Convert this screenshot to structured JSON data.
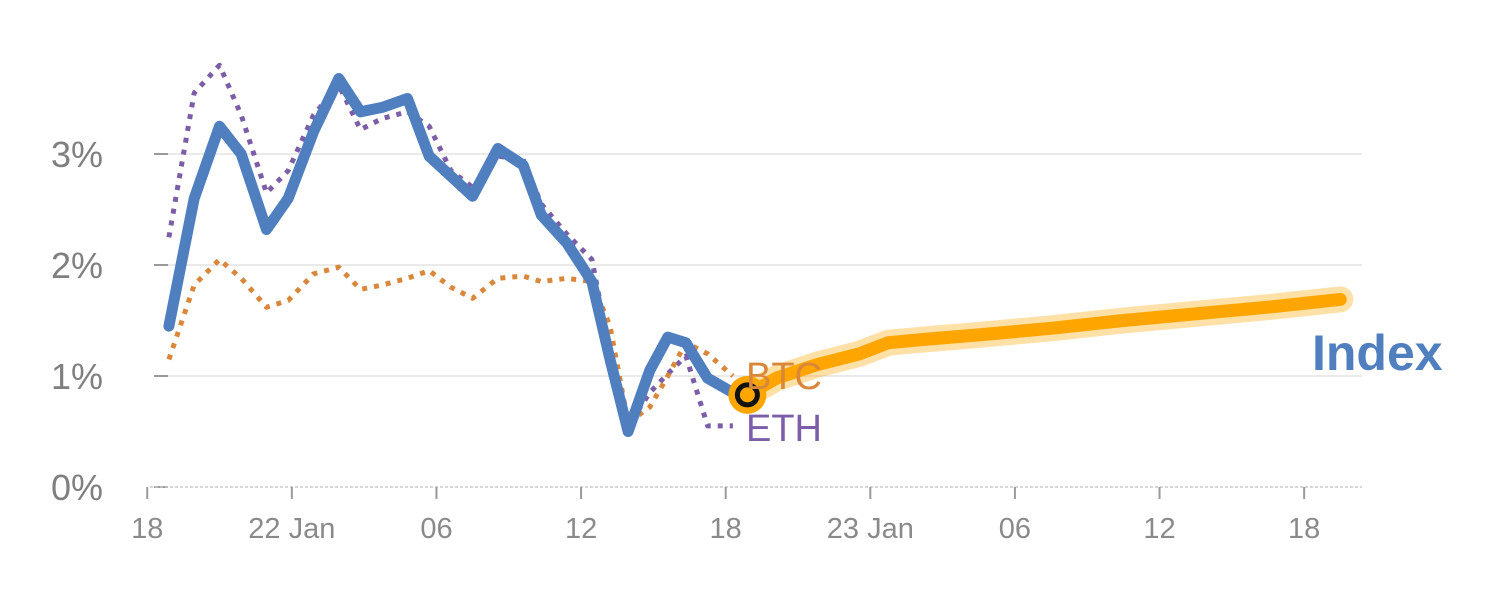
{
  "chart_data": {
    "type": "line",
    "y_unit": "%",
    "ylim": [
      0,
      4
    ],
    "y_ticks": [
      {
        "value": 0,
        "label": "0%"
      },
      {
        "value": 1,
        "label": "1%"
      },
      {
        "value": 2,
        "label": "2%"
      },
      {
        "value": 3,
        "label": "3%"
      }
    ],
    "x_ticks": [
      {
        "x": 0,
        "label": "18"
      },
      {
        "x": 4,
        "label": "22 Jan"
      },
      {
        "x": 8,
        "label": "06"
      },
      {
        "x": 12,
        "label": "12"
      },
      {
        "x": 16,
        "label": "18"
      },
      {
        "x": 20,
        "label": "23 Jan"
      },
      {
        "x": 24,
        "label": "06"
      },
      {
        "x": 28,
        "label": "12"
      },
      {
        "x": 32,
        "label": "18"
      }
    ],
    "xlim": [
      -0.2,
      33.6
    ],
    "grid": true,
    "series": [
      {
        "name": "Index",
        "style": "solid",
        "color": "#4f7fbf",
        "x": [
          0.6,
          1.3,
          2.0,
          2.6,
          3.3,
          3.9,
          4.6,
          5.3,
          5.9,
          6.5,
          7.2,
          7.8,
          8.4,
          9.0,
          9.7,
          10.4,
          10.9,
          11.6,
          12.3,
          12.8,
          13.3,
          13.9,
          14.4,
          14.9,
          15.5,
          16.2,
          16.6
        ],
        "values": [
          1.45,
          2.6,
          3.25,
          3.0,
          2.32,
          2.6,
          3.2,
          3.68,
          3.38,
          3.42,
          3.5,
          2.98,
          2.8,
          2.62,
          3.05,
          2.9,
          2.45,
          2.2,
          1.85,
          1.15,
          0.5,
          1.05,
          1.35,
          1.3,
          0.98,
          0.85,
          0.83
        ]
      },
      {
        "name": "ETH",
        "style": "dotted",
        "color": "#7b5ea7",
        "x": [
          0.6,
          1.3,
          2.0,
          2.6,
          3.3,
          3.9,
          4.6,
          5.3,
          5.9,
          6.5,
          7.2,
          7.8,
          8.4,
          9.0,
          9.7,
          10.4,
          10.9,
          11.6,
          12.3,
          12.8,
          13.3,
          13.9,
          14.4,
          14.9,
          15.5,
          16.2
        ],
        "values": [
          2.25,
          3.55,
          3.8,
          3.35,
          2.65,
          2.85,
          3.35,
          3.62,
          3.22,
          3.32,
          3.38,
          3.25,
          2.85,
          2.7,
          2.98,
          2.95,
          2.55,
          2.28,
          2.05,
          1.2,
          0.55,
          0.85,
          1.02,
          1.18,
          0.55,
          0.55
        ]
      },
      {
        "name": "BTC",
        "style": "dotted",
        "color": "#d9873a",
        "x": [
          0.6,
          1.3,
          2.0,
          2.6,
          3.3,
          3.9,
          4.6,
          5.3,
          5.9,
          6.5,
          7.2,
          7.8,
          8.4,
          9.0,
          9.7,
          10.4,
          10.9,
          11.6,
          12.3,
          12.8,
          13.3,
          13.9,
          14.4,
          14.9,
          15.5,
          16.2
        ],
        "values": [
          1.15,
          1.82,
          2.05,
          1.88,
          1.62,
          1.68,
          1.92,
          1.98,
          1.78,
          1.82,
          1.88,
          1.95,
          1.8,
          1.7,
          1.88,
          1.9,
          1.85,
          1.88,
          1.85,
          1.45,
          0.58,
          0.72,
          1.0,
          1.3,
          1.2,
          1.0
        ]
      },
      {
        "name": "Index",
        "style": "forecast",
        "color": "#ffa500",
        "x": [
          16.6,
          17.4,
          18.5,
          19.7,
          20.5,
          21.5,
          23.0,
          25.0,
          27.0,
          29.0,
          31.0,
          33.0
        ],
        "values": [
          0.83,
          0.98,
          1.1,
          1.2,
          1.3,
          1.33,
          1.37,
          1.43,
          1.5,
          1.56,
          1.62,
          1.69
        ]
      }
    ],
    "marker": {
      "x": 16.6,
      "value": 0.83
    },
    "labels": {
      "btc": "BTC",
      "eth": "ETH",
      "index": "Index"
    }
  }
}
